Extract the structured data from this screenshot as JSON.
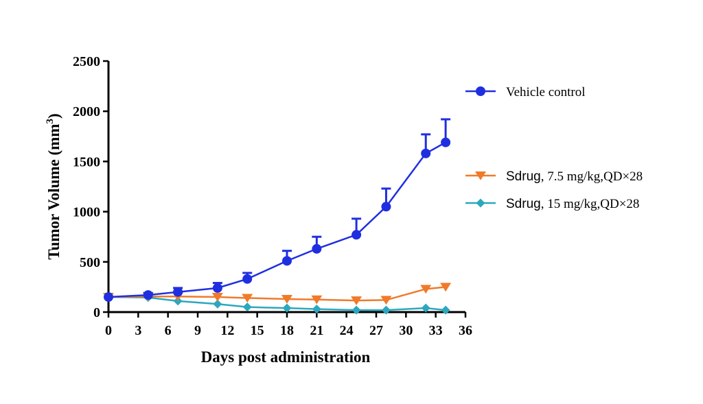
{
  "chart_data": {
    "type": "line",
    "xlabel": "Days post administration",
    "ylabel": "Tumor Volume (mm",
    "ylabel_sup": "3",
    "ylabel_end": ")",
    "xlim": [
      0,
      36
    ],
    "ylim": [
      0,
      2500
    ],
    "xticks": [
      0,
      3,
      6,
      9,
      12,
      15,
      18,
      21,
      24,
      27,
      30,
      33,
      36
    ],
    "yticks": [
      0,
      500,
      1000,
      1500,
      2000,
      2500
    ],
    "grid": false,
    "legend_position": "right",
    "series": [
      {
        "name": "Vehicle control",
        "color": "#1f2fe0",
        "marker": "circle",
        "x": [
          0,
          4,
          7,
          11,
          14,
          18,
          21,
          25,
          28,
          32,
          34
        ],
        "y": [
          150,
          170,
          200,
          240,
          330,
          510,
          630,
          770,
          1050,
          1580,
          1690
        ],
        "error": [
          0,
          20,
          40,
          50,
          60,
          100,
          120,
          160,
          180,
          190,
          230
        ]
      },
      {
        "name": "Sdrug, 7.5 mg/kg,QD×28",
        "name_prefix": "Sdrug",
        "name_suffix": ", 7.5 mg/kg,QD×28",
        "color": "#f07a2a",
        "marker": "triangle-down",
        "x": [
          0,
          4,
          7,
          11,
          14,
          18,
          21,
          25,
          28,
          32,
          34
        ],
        "y": [
          150,
          155,
          155,
          150,
          140,
          130,
          125,
          115,
          120,
          230,
          250
        ],
        "error": [
          0,
          0,
          0,
          0,
          0,
          0,
          0,
          0,
          0,
          0,
          0
        ]
      },
      {
        "name": "Sdrug, 15 mg/kg,QD×28",
        "name_prefix": "Sdrug",
        "name_suffix": ", 15 mg/kg,QD×28",
        "color": "#2ba8be",
        "marker": "diamond",
        "x": [
          0,
          4,
          7,
          11,
          14,
          18,
          21,
          25,
          28,
          32,
          34
        ],
        "y": [
          150,
          145,
          110,
          80,
          50,
          40,
          30,
          20,
          20,
          40,
          20
        ],
        "error": [
          0,
          0,
          0,
          0,
          0,
          0,
          0,
          0,
          0,
          0,
          0
        ]
      }
    ]
  }
}
